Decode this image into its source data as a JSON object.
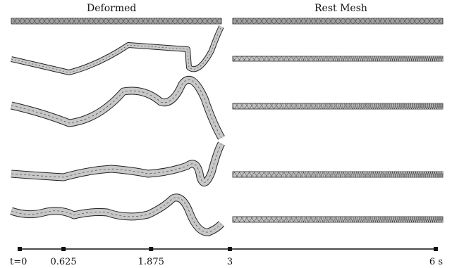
{
  "headers": {
    "left": "Deformed",
    "right": "Rest Mesh"
  },
  "timeline": {
    "unit": "s",
    "ticks": [
      {
        "value": 0,
        "label": "t=0"
      },
      {
        "value": 0.625,
        "label": "0.625"
      },
      {
        "value": 1.875,
        "label": "1.875"
      },
      {
        "value": 3,
        "label": "3"
      },
      {
        "value": 6,
        "label": "6 s"
      }
    ]
  },
  "colors": {
    "strip_fill": "#c8c8c8",
    "strip_stroke": "#222222",
    "axis": "#111111"
  }
}
